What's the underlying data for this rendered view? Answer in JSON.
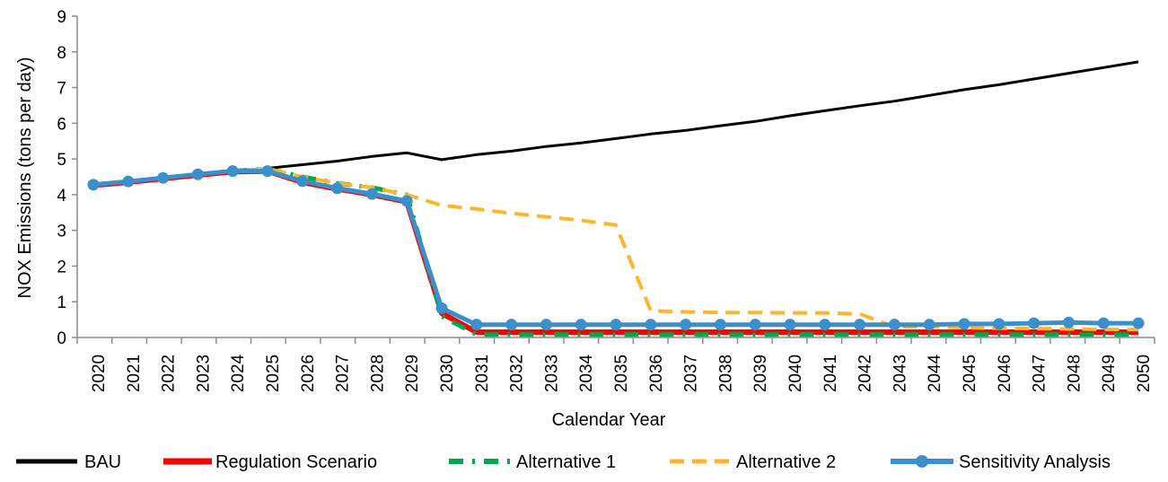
{
  "chart_data": {
    "type": "line",
    "title": "",
    "xlabel": "Calendar Year",
    "ylabel": "NOX Emissions (tons per day)",
    "ylim": [
      0,
      9
    ],
    "yticks": [
      0,
      1,
      2,
      3,
      4,
      5,
      6,
      7,
      8,
      9
    ],
    "grid": false,
    "legend_position": "bottom",
    "x": [
      "2020",
      "2021",
      "2022",
      "2023",
      "2024",
      "2025",
      "2026",
      "2027",
      "2028",
      "2029",
      "2030",
      "2031",
      "2032",
      "2033",
      "2034",
      "2035",
      "2036",
      "2037",
      "2038",
      "2039",
      "2040",
      "2041",
      "2042",
      "2043",
      "2044",
      "2045",
      "2046",
      "2047",
      "2048",
      "2049",
      "2050"
    ],
    "series": [
      {
        "name": "BAU",
        "color": "#000000",
        "style": "solid",
        "values": [
          4.28,
          4.38,
          4.48,
          4.58,
          4.66,
          4.74,
          4.84,
          4.94,
          5.07,
          5.17,
          4.98,
          5.12,
          5.22,
          5.35,
          5.45,
          5.57,
          5.7,
          5.8,
          5.93,
          6.05,
          6.21,
          6.35,
          6.49,
          6.62,
          6.78,
          6.94,
          7.08,
          7.24,
          7.4,
          7.56,
          7.72
        ]
      },
      {
        "name": "Regulation Scenario",
        "color": "#ff0000",
        "style": "solid",
        "values": [
          4.26,
          4.35,
          4.45,
          4.55,
          4.64,
          4.66,
          4.35,
          4.16,
          4.0,
          3.8,
          0.68,
          0.15,
          0.15,
          0.15,
          0.15,
          0.15,
          0.15,
          0.15,
          0.15,
          0.15,
          0.15,
          0.15,
          0.15,
          0.15,
          0.15,
          0.15,
          0.15,
          0.15,
          0.15,
          0.15,
          0.15
        ]
      },
      {
        "name": "Alternative 1",
        "color": "#00a651",
        "style": "dashdot",
        "values": [
          4.28,
          4.37,
          4.47,
          4.57,
          4.66,
          4.72,
          4.5,
          4.32,
          4.2,
          4.0,
          0.6,
          0.08,
          0.08,
          0.08,
          0.08,
          0.08,
          0.08,
          0.08,
          0.08,
          0.08,
          0.08,
          0.08,
          0.08,
          0.08,
          0.08,
          0.08,
          0.08,
          0.08,
          0.08,
          0.08,
          0.08
        ]
      },
      {
        "name": "Alternative 2",
        "color": "#fbb62c",
        "style": "dashed",
        "values": [
          4.28,
          4.37,
          4.47,
          4.57,
          4.66,
          4.72,
          4.5,
          4.32,
          4.2,
          4.0,
          3.7,
          3.6,
          3.48,
          3.38,
          3.28,
          3.15,
          0.75,
          0.72,
          0.7,
          0.7,
          0.69,
          0.69,
          0.66,
          0.3,
          0.3,
          0.28,
          0.26,
          0.25,
          0.24,
          0.23,
          0.22
        ]
      },
      {
        "name": "Sensitivity Analysis",
        "color": "#3a8fcd",
        "style": "solid-marker",
        "values": [
          4.28,
          4.37,
          4.47,
          4.57,
          4.66,
          4.66,
          4.38,
          4.18,
          4.02,
          3.82,
          0.82,
          0.36,
          0.36,
          0.36,
          0.36,
          0.36,
          0.36,
          0.36,
          0.36,
          0.36,
          0.36,
          0.36,
          0.36,
          0.36,
          0.36,
          0.38,
          0.38,
          0.4,
          0.42,
          0.4,
          0.4
        ]
      }
    ]
  }
}
